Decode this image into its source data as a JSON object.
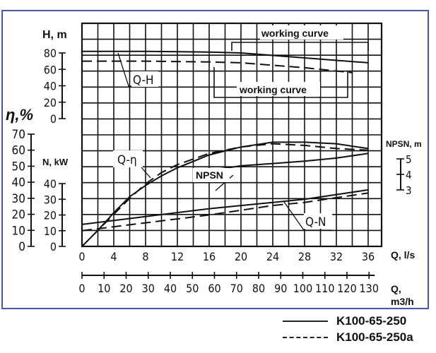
{
  "chart_data": {
    "type": "line",
    "title": "",
    "x": {
      "label": "Q, l/s",
      "ticks": [
        0,
        4,
        8,
        12,
        16,
        20,
        24,
        28,
        32,
        36
      ],
      "range": [
        0,
        37.5
      ],
      "secondary_label": "Q, m3/h",
      "secondary_ticks": [
        0,
        10,
        20,
        30,
        40,
        50,
        60,
        70,
        80,
        90,
        100,
        110,
        120,
        130
      ]
    },
    "y_axes": [
      {
        "id": "H",
        "label": "H, m",
        "ticks": [
          0,
          20,
          40,
          60,
          80
        ]
      },
      {
        "id": "eta",
        "label": "η,%",
        "ticks": [
          0,
          10,
          20,
          30,
          40,
          50,
          60,
          70
        ]
      },
      {
        "id": "N",
        "label": "N, kW",
        "ticks": [
          0,
          10,
          20,
          30,
          40
        ]
      },
      {
        "id": "NPSH",
        "label": "NPSN, m",
        "ticks": [
          3,
          4,
          5
        ]
      }
    ],
    "grid": true,
    "annotations": [
      "Q-H",
      "Q-η",
      "NPSN",
      "Q-N",
      "working curve",
      "working curve"
    ],
    "legend": [
      {
        "name": "K100-65-250",
        "style": "solid"
      },
      {
        "name": "K100-65-250a",
        "style": "dashed"
      }
    ],
    "series": [
      {
        "name": "Q-H K100-65-250",
        "axis": "H",
        "style": "solid",
        "x": [
          0,
          8,
          16,
          20,
          24,
          28,
          32,
          36
        ],
        "y": [
          82,
          82,
          81,
          80,
          77,
          74,
          71,
          68
        ]
      },
      {
        "name": "Q-H K100-65-250a",
        "axis": "H",
        "style": "dashed",
        "x": [
          0,
          8,
          16,
          20,
          24,
          28,
          32,
          34
        ],
        "y": [
          70,
          70,
          69,
          68,
          65,
          62,
          58,
          56
        ]
      },
      {
        "name": "Q-η K100-65-250",
        "axis": "eta",
        "style": "solid",
        "x": [
          0,
          2,
          4,
          6,
          8,
          10,
          12,
          16,
          20,
          24,
          28,
          32,
          36
        ],
        "y": [
          0,
          10,
          21,
          31,
          38,
          44,
          49,
          57,
          62,
          65,
          65,
          64,
          61
        ]
      },
      {
        "name": "Q-η K100-65-250a",
        "axis": "eta",
        "style": "dashed",
        "x": [
          0,
          2,
          4,
          6,
          8,
          10,
          12,
          16,
          20,
          24,
          28,
          32,
          36
        ],
        "y": [
          0,
          10,
          20,
          30,
          39,
          46,
          51,
          58,
          62,
          64,
          63,
          61,
          60
        ]
      },
      {
        "name": "NPSN",
        "axis": "NPSH",
        "style": "solid",
        "x": [
          16,
          18,
          20,
          24,
          28,
          32,
          36
        ],
        "y": [
          4.3,
          4.4,
          4.55,
          4.7,
          4.85,
          5.05,
          5.35
        ]
      },
      {
        "name": "Q-N K100-65-250",
        "axis": "N",
        "style": "solid",
        "x": [
          0,
          8,
          16,
          20,
          24,
          28,
          32,
          36
        ],
        "y": [
          14,
          19,
          24,
          26,
          28,
          30,
          33,
          36
        ]
      },
      {
        "name": "Q-N K100-65-250a",
        "axis": "N",
        "style": "dashed",
        "x": [
          0,
          8,
          16,
          20,
          24,
          28,
          32,
          36
        ],
        "y": [
          10,
          15,
          20,
          23,
          26,
          28,
          31,
          34
        ]
      }
    ]
  },
  "labels": {
    "h_axis": "H, m",
    "eta_axis": "η,%",
    "n_axis": "N, kW",
    "npsh_axis": "NPSN, m",
    "q_ls_axis": "Q, l/s",
    "q_m3h_axis_1": "Q,",
    "q_m3h_axis_2": "m3/h",
    "curve_qh": "Q-H",
    "curve_qeta": "Q-η",
    "curve_npsh": "NPSN",
    "curve_qn": "Q-N",
    "working_curve_top": "working curve",
    "working_curve_mid": "working curve"
  },
  "legend": {
    "solid": "K100-65-250",
    "dashed": "K100-65-250a"
  }
}
